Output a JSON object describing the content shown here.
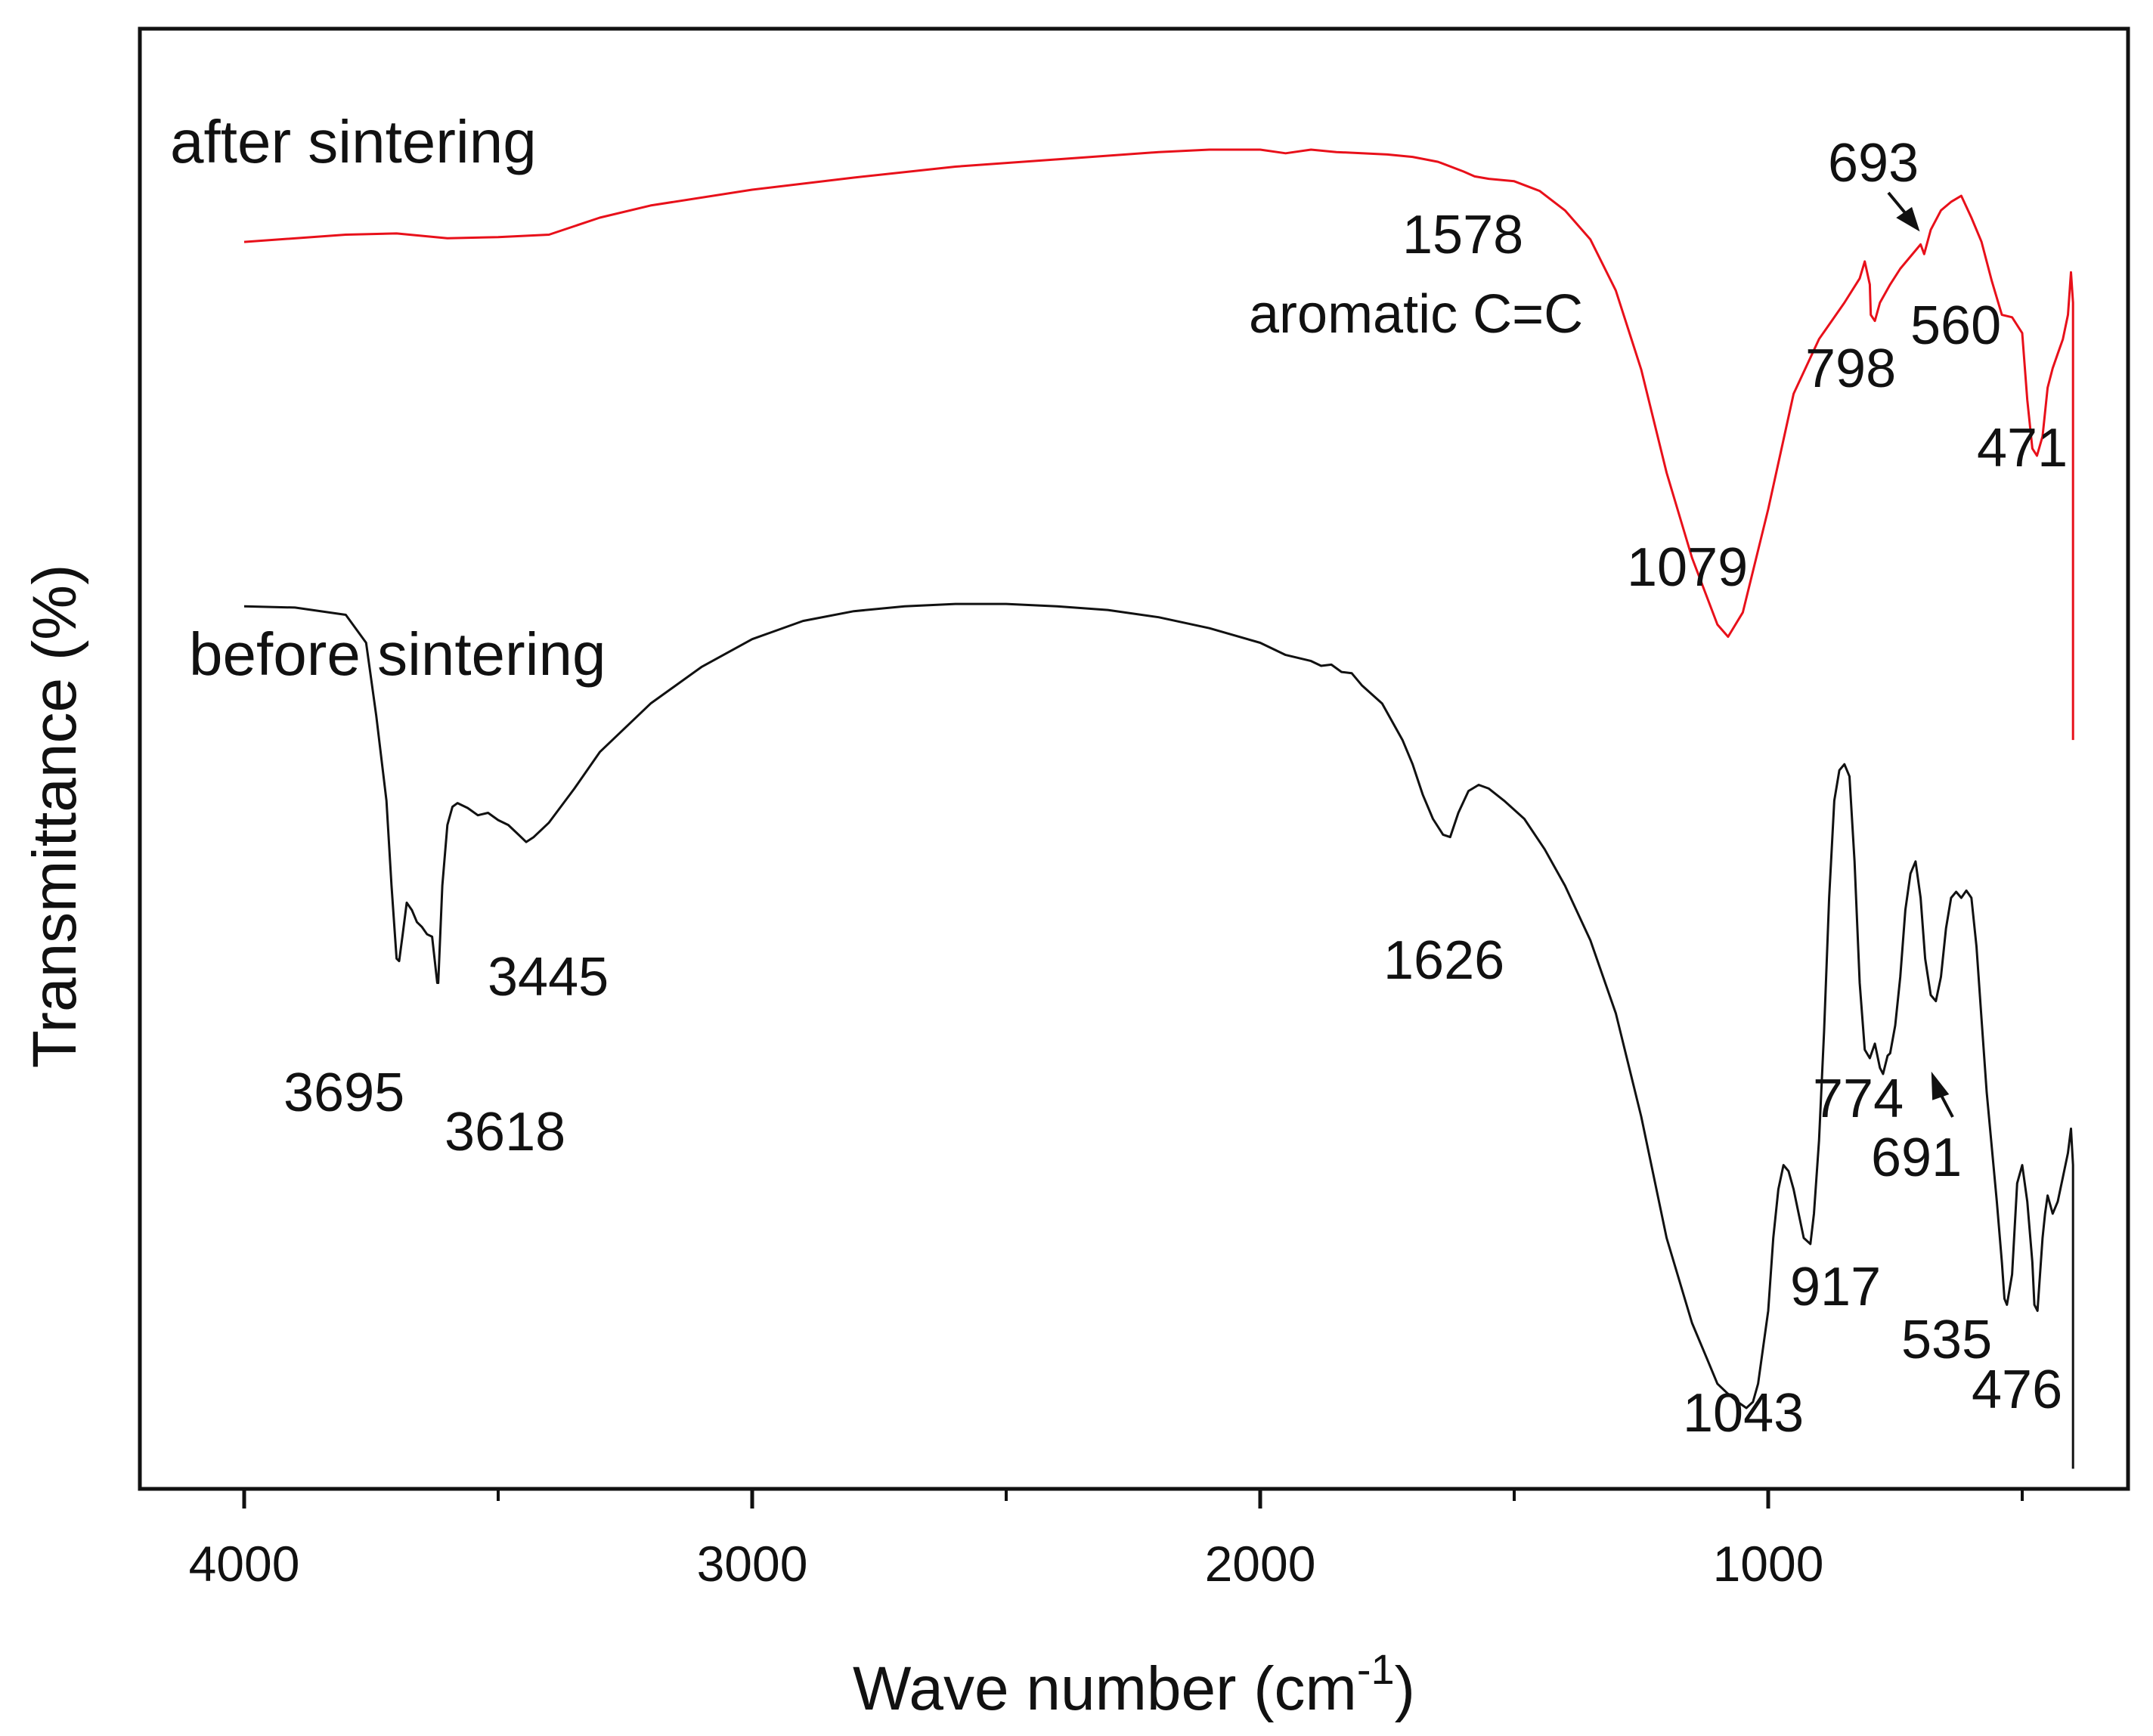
{
  "chart_data": {
    "type": "line",
    "title": "",
    "xlabel": "Wave number (cm",
    "xlabel_superscript": "-1",
    "xlabel_close": ")",
    "ylabel": "Transmittance (%)",
    "xlim": [
      4200,
      290
    ],
    "x_reversed": true,
    "y_axis_ticks": false,
    "grid": false,
    "x_ticks": [
      {
        "value": 4000,
        "label": "4000"
      },
      {
        "value": 3000,
        "label": "3000"
      },
      {
        "value": 2000,
        "label": "2000"
      },
      {
        "value": 1000,
        "label": "1000"
      }
    ],
    "x_minor_ticks": [
      3500,
      2500,
      1500,
      500
    ],
    "series": [
      {
        "name": "after sintering",
        "color": "#e8101a",
        "x": [
          4000,
          3800,
          3700,
          3600,
          3500,
          3400,
          3300,
          3200,
          3000,
          2800,
          2600,
          2400,
          2200,
          2100,
          2000,
          1950,
          1900,
          1850,
          1800,
          1750,
          1700,
          1650,
          1600,
          1578,
          1550,
          1500,
          1450,
          1400,
          1350,
          1300,
          1250,
          1200,
          1150,
          1100,
          1079,
          1050,
          1000,
          950,
          900,
          850,
          820,
          810,
          800,
          798,
          790,
          780,
          760,
          740,
          720,
          700,
          693,
          680,
          660,
          640,
          620,
          600,
          580,
          560,
          540,
          520,
          500,
          490,
          480,
          471,
          460,
          450,
          440,
          430,
          420,
          410,
          404,
          400,
          400
        ],
        "y": [
          79.0,
          79.6,
          79.7,
          79.3,
          79.4,
          79.6,
          81.0,
          82.0,
          83.3,
          84.3,
          85.2,
          85.8,
          86.4,
          86.6,
          86.6,
          86.3,
          86.6,
          86.4,
          86.3,
          86.2,
          86.0,
          85.6,
          84.8,
          84.4,
          84.2,
          84.0,
          83.2,
          81.6,
          79.2,
          75.0,
          68.5,
          60.0,
          53.0,
          47.5,
          46.5,
          48.5,
          57.0,
          66.5,
          71.0,
          74.0,
          76.0,
          77.4,
          75.5,
          73.0,
          72.5,
          74.0,
          75.5,
          76.8,
          77.8,
          78.8,
          78.0,
          80.0,
          81.6,
          82.3,
          82.8,
          81.0,
          79.0,
          75.8,
          73.0,
          72.8,
          71.5,
          66.0,
          62.0,
          61.4,
          63.0,
          67.0,
          68.6,
          69.8,
          71.0,
          73.0,
          76.5,
          74.0,
          38.0
        ]
      },
      {
        "name": "before sintering",
        "color": "#111111",
        "x": [
          4000,
          3900,
          3800,
          3760,
          3740,
          3720,
          3710,
          3700,
          3695,
          3688,
          3680,
          3670,
          3660,
          3650,
          3640,
          3630,
          3620,
          3618,
          3610,
          3600,
          3590,
          3580,
          3560,
          3540,
          3520,
          3500,
          3480,
          3460,
          3445,
          3430,
          3400,
          3350,
          3300,
          3200,
          3100,
          3000,
          2900,
          2800,
          2700,
          2600,
          2500,
          2400,
          2300,
          2200,
          2100,
          2000,
          1950,
          1900,
          1880,
          1860,
          1840,
          1820,
          1800,
          1760,
          1720,
          1700,
          1680,
          1660,
          1640,
          1626,
          1610,
          1590,
          1570,
          1550,
          1520,
          1480,
          1440,
          1400,
          1350,
          1300,
          1250,
          1200,
          1150,
          1120,
          1100,
          1080,
          1060,
          1043,
          1030,
          1020,
          1000,
          990,
          980,
          970,
          960,
          950,
          940,
          930,
          917,
          910,
          900,
          890,
          880,
          870,
          860,
          850,
          840,
          830,
          820,
          810,
          800,
          790,
          780,
          774,
          765,
          760,
          750,
          740,
          730,
          720,
          710,
          700,
          691,
          680,
          670,
          660,
          650,
          640,
          630,
          620,
          610,
          600,
          590,
          580,
          570,
          560,
          550,
          540,
          535,
          530,
          520,
          510,
          500,
          490,
          480,
          476,
          470,
          460,
          455,
          450,
          440,
          430,
          420,
          410,
          404,
          400,
          400
        ],
        "y": [
          49.0,
          48.9,
          48.3,
          46.0,
          40.0,
          33.0,
          26.0,
          20.0,
          19.8,
          22.0,
          24.6,
          24.0,
          23.0,
          22.6,
          22.0,
          21.8,
          18.0,
          18.0,
          26.0,
          31.0,
          32.5,
          32.8,
          32.4,
          31.8,
          32.0,
          31.4,
          31.0,
          30.2,
          29.6,
          30.0,
          31.2,
          34.0,
          37.0,
          41.0,
          44.0,
          46.3,
          47.8,
          48.6,
          49.0,
          49.2,
          49.2,
          49.0,
          48.7,
          48.1,
          47.2,
          46.0,
          45.0,
          44.5,
          44.1,
          44.2,
          43.6,
          43.5,
          42.5,
          41.0,
          38.0,
          36.0,
          33.5,
          31.5,
          30.2,
          30.0,
          32.0,
          33.8,
          34.3,
          34.0,
          33.0,
          31.5,
          29.0,
          26.0,
          21.5,
          15.5,
          7.0,
          -3.0,
          -10.0,
          -13.0,
          -15.0,
          -15.8,
          -16.5,
          -17.0,
          -16.5,
          -15.0,
          -9.0,
          -3.0,
          1.0,
          3.0,
          2.5,
          1.0,
          -1.0,
          -3.0,
          -3.5,
          -1.0,
          5.0,
          14.0,
          25.0,
          33.0,
          35.5,
          36.0,
          35.0,
          28.0,
          18.0,
          12.5,
          11.8,
          13.0,
          11.0,
          10.5,
          12.0,
          12.2,
          14.5,
          18.5,
          24.0,
          27.0,
          28.0,
          25.0,
          20.0,
          17.0,
          16.5,
          18.5,
          22.5,
          25.0,
          25.5,
          25.0,
          25.6,
          25.0,
          21.0,
          15.0,
          9.0,
          4.5,
          0.0,
          -5.0,
          -8.0,
          -8.5,
          -6.0,
          1.5,
          3.0,
          0.0,
          -5.0,
          -8.5,
          -9.0,
          -3.0,
          -1.0,
          0.5,
          -1.0,
          0.0,
          2.0,
          4.0,
          6.0,
          3.0,
          -22.0
        ]
      }
    ],
    "series_labels": [
      "after sintering",
      "before sintering"
    ],
    "annotations": [
      {
        "series": "after sintering",
        "label": "1578"
      },
      {
        "series": "after sintering",
        "label": "aromatic C=C"
      },
      {
        "series": "after sintering",
        "label": "1079"
      },
      {
        "series": "after sintering",
        "label": "798"
      },
      {
        "series": "after sintering",
        "label": "693"
      },
      {
        "series": "after sintering",
        "label": "560"
      },
      {
        "series": "after sintering",
        "label": "471"
      },
      {
        "series": "before sintering",
        "label": "3695"
      },
      {
        "series": "before sintering",
        "label": "3618"
      },
      {
        "series": "before sintering",
        "label": "3445"
      },
      {
        "series": "before sintering",
        "label": "1626"
      },
      {
        "series": "before sintering",
        "label": "1043"
      },
      {
        "series": "before sintering",
        "label": "917"
      },
      {
        "series": "before sintering",
        "label": "774"
      },
      {
        "series": "before sintering",
        "label": "691"
      },
      {
        "series": "before sintering",
        "label": "535"
      },
      {
        "series": "before sintering",
        "label": "476"
      }
    ]
  }
}
